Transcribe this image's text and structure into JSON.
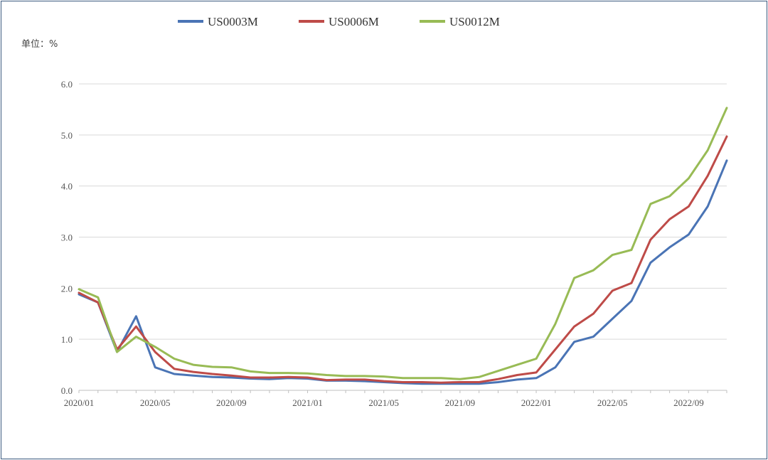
{
  "chart_data": {
    "type": "line",
    "unit_label": "单位：%",
    "legend_position": "top-center",
    "grid": "horizontal",
    "ylim": [
      0,
      6
    ],
    "y_ticks": [
      "0.0",
      "1.0",
      "2.0",
      "3.0",
      "4.0",
      "5.0",
      "6.0"
    ],
    "x_tick_labels": [
      "2020/01",
      "2020/05",
      "2020/09",
      "2021/01",
      "2021/05",
      "2021/09",
      "2022/01",
      "2022/05",
      "2022/09"
    ],
    "xlim": [
      "2020/01",
      "2022/11"
    ],
    "x": [
      "2020-01",
      "2020-02",
      "2020-03",
      "2020-04",
      "2020-05",
      "2020-06",
      "2020-07",
      "2020-08",
      "2020-09",
      "2020-10",
      "2020-11",
      "2020-12",
      "2021-01",
      "2021-02",
      "2021-03",
      "2021-04",
      "2021-05",
      "2021-06",
      "2021-07",
      "2021-08",
      "2021-09",
      "2021-10",
      "2021-11",
      "2021-12",
      "2022-01",
      "2022-02",
      "2022-03",
      "2022-04",
      "2022-05",
      "2022-06",
      "2022-07",
      "2022-08",
      "2022-09",
      "2022-10",
      "2022-11"
    ],
    "series": [
      {
        "name": "US0003M",
        "color": "#4a74b5",
        "values": [
          1.88,
          1.72,
          0.75,
          1.45,
          0.45,
          0.32,
          0.29,
          0.26,
          0.25,
          0.23,
          0.22,
          0.24,
          0.23,
          0.19,
          0.19,
          0.18,
          0.16,
          0.14,
          0.13,
          0.13,
          0.13,
          0.13,
          0.16,
          0.21,
          0.24,
          0.45,
          0.95,
          1.05,
          1.4,
          1.75,
          2.5,
          2.8,
          3.05,
          3.6,
          4.5
        ]
      },
      {
        "name": "US0006M",
        "color": "#be4b48",
        "values": [
          1.91,
          1.72,
          0.8,
          1.25,
          0.75,
          0.42,
          0.36,
          0.32,
          0.29,
          0.25,
          0.25,
          0.26,
          0.25,
          0.2,
          0.21,
          0.21,
          0.18,
          0.16,
          0.16,
          0.15,
          0.16,
          0.16,
          0.22,
          0.3,
          0.35,
          0.8,
          1.25,
          1.5,
          1.95,
          2.1,
          2.95,
          3.35,
          3.6,
          4.2,
          4.97
        ]
      },
      {
        "name": "US0012M",
        "color": "#98bb55",
        "values": [
          1.98,
          1.82,
          0.75,
          1.05,
          0.85,
          0.62,
          0.5,
          0.46,
          0.45,
          0.37,
          0.34,
          0.34,
          0.33,
          0.3,
          0.28,
          0.28,
          0.27,
          0.24,
          0.24,
          0.24,
          0.22,
          0.26,
          0.38,
          0.5,
          0.62,
          1.3,
          2.2,
          2.35,
          2.65,
          2.75,
          3.65,
          3.8,
          4.15,
          4.7,
          5.53
        ]
      }
    ]
  }
}
